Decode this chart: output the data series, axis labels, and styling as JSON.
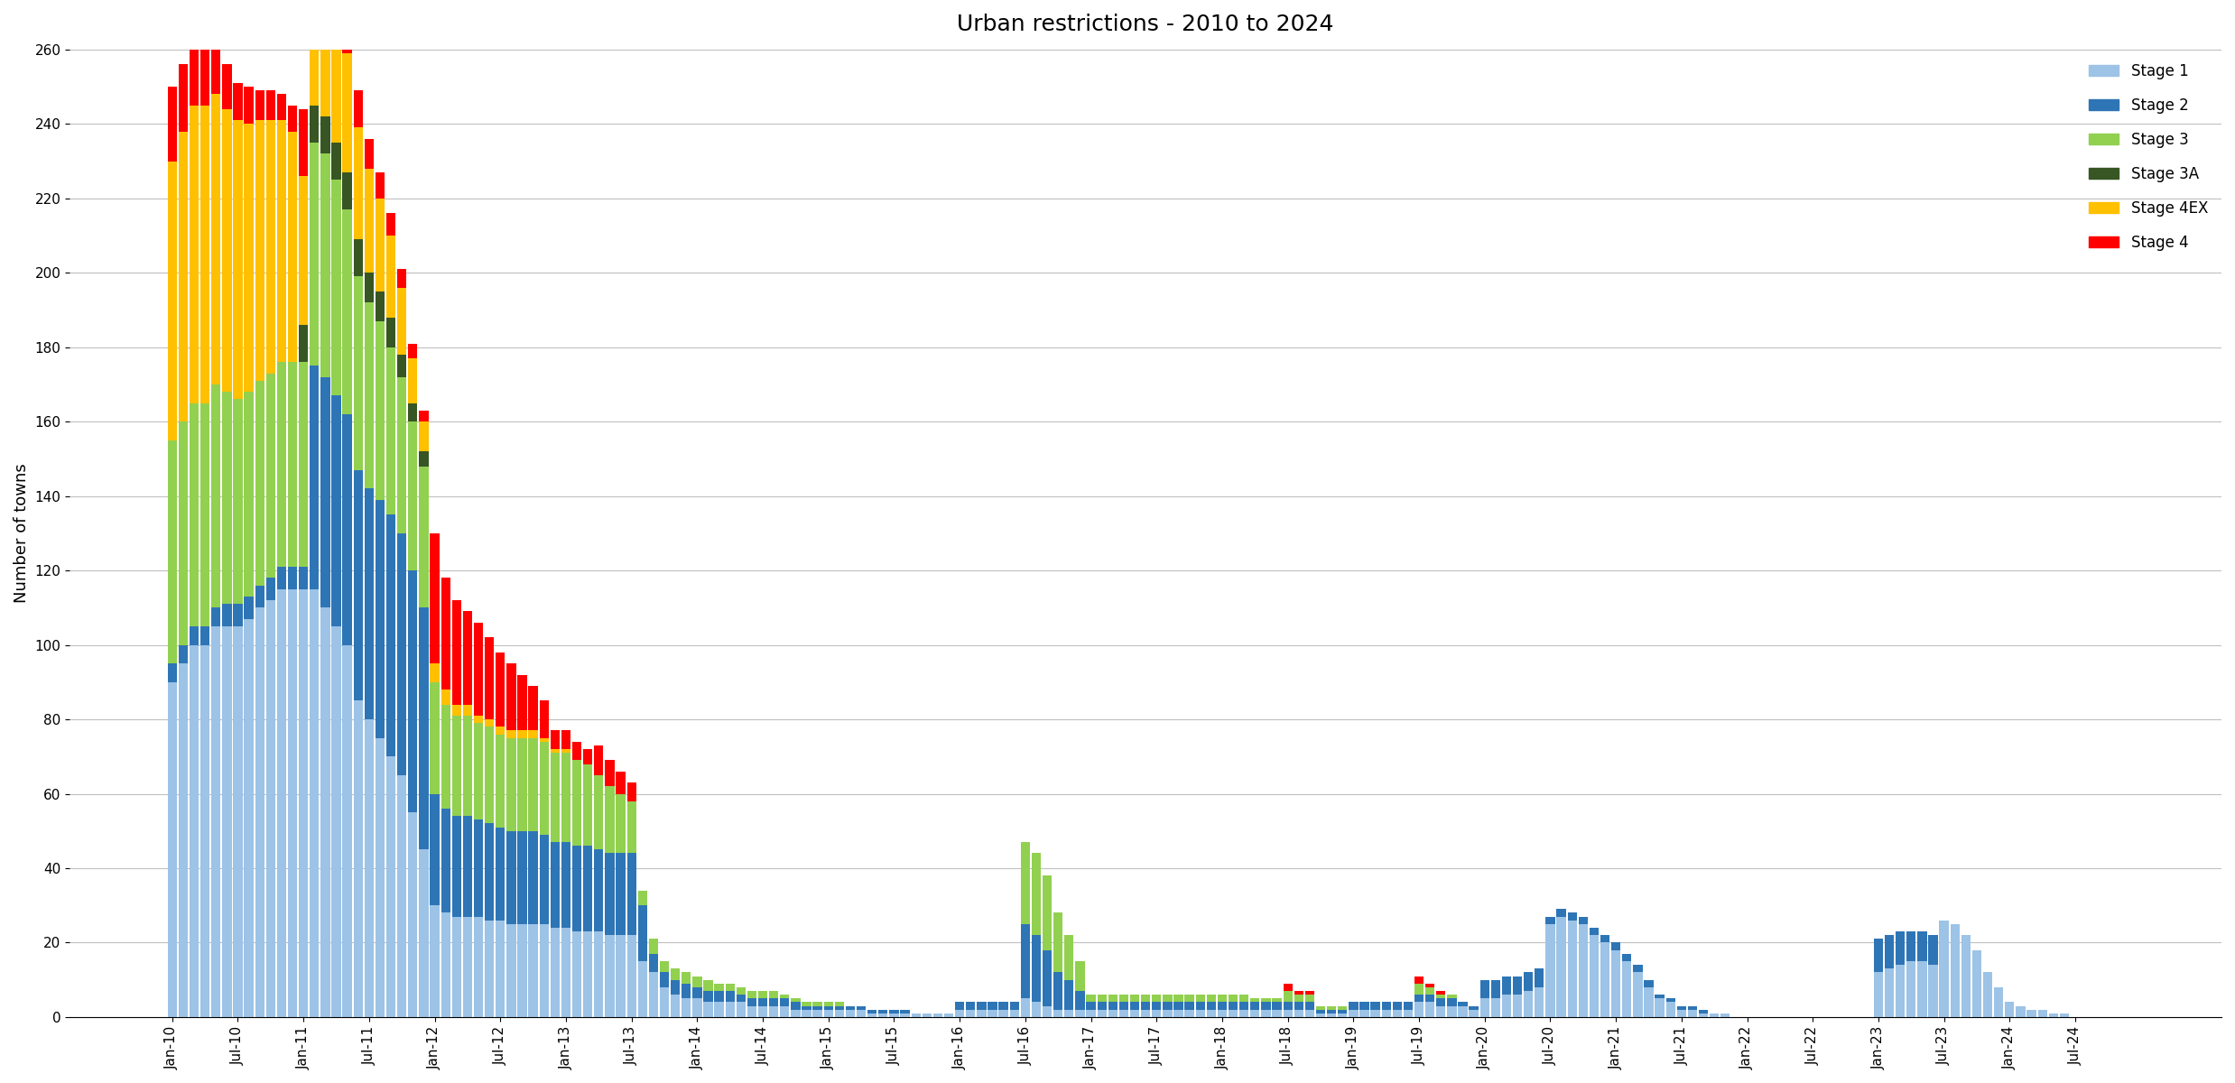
{
  "title": "Urban restrictions - 2010 to 2024",
  "ylabel": "Number of towns",
  "ylim": [
    0,
    260
  ],
  "yticks": [
    0,
    20,
    40,
    60,
    80,
    100,
    120,
    140,
    160,
    180,
    200,
    220,
    240,
    260
  ],
  "colors": {
    "Stage 1": "#9DC3E6",
    "Stage 2": "#2E75B6",
    "Stage 3": "#92D050",
    "Stage 3A": "#375623",
    "Stage 4EX": "#FFC000",
    "Stage 4": "#FF0000"
  },
  "legend_labels": [
    "Stage 1",
    "Stage 2",
    "Stage 3",
    "Stage 3A",
    "Stage 4EX",
    "Stage 4"
  ],
  "background_color": "#FFFFFF",
  "grid_color": "#C0C0C0",
  "title_fontsize": 18,
  "label_fontsize": 13,
  "tick_fontsize": 11,
  "vals_2010": [
    [
      90,
      5,
      60,
      0,
      75,
      20
    ],
    [
      95,
      5,
      60,
      0,
      78,
      18
    ],
    [
      100,
      5,
      60,
      0,
      80,
      15
    ],
    [
      100,
      5,
      60,
      0,
      80,
      15
    ],
    [
      105,
      5,
      60,
      0,
      78,
      15
    ],
    [
      105,
      6,
      57,
      0,
      76,
      12
    ],
    [
      105,
      6,
      55,
      0,
      75,
      10
    ],
    [
      107,
      6,
      55,
      0,
      72,
      10
    ],
    [
      110,
      6,
      55,
      0,
      70,
      8
    ],
    [
      112,
      6,
      55,
      0,
      68,
      8
    ],
    [
      115,
      6,
      55,
      0,
      65,
      7
    ],
    [
      115,
      6,
      55,
      0,
      62,
      7
    ]
  ],
  "vals_2011": [
    [
      115,
      6,
      55,
      10,
      40,
      18
    ],
    [
      115,
      60,
      60,
      10,
      38,
      16
    ],
    [
      110,
      62,
      60,
      10,
      36,
      16
    ],
    [
      105,
      62,
      58,
      10,
      34,
      14
    ],
    [
      100,
      62,
      55,
      10,
      32,
      12
    ],
    [
      85,
      62,
      52,
      10,
      30,
      10
    ],
    [
      80,
      62,
      50,
      8,
      28,
      8
    ],
    [
      75,
      64,
      48,
      8,
      25,
      7
    ],
    [
      70,
      65,
      45,
      8,
      22,
      6
    ],
    [
      65,
      65,
      42,
      6,
      18,
      5
    ],
    [
      55,
      65,
      40,
      5,
      12,
      4
    ],
    [
      45,
      65,
      38,
      4,
      8,
      3
    ]
  ],
  "vals_2012": [
    [
      30,
      30,
      30,
      0,
      5,
      35
    ],
    [
      28,
      28,
      28,
      0,
      4,
      30
    ],
    [
      27,
      27,
      27,
      0,
      3,
      28
    ],
    [
      27,
      27,
      27,
      0,
      3,
      25
    ],
    [
      27,
      26,
      26,
      0,
      2,
      25
    ],
    [
      26,
      26,
      26,
      0,
      2,
      22
    ],
    [
      26,
      25,
      25,
      0,
      2,
      20
    ],
    [
      25,
      25,
      25,
      0,
      2,
      18
    ],
    [
      25,
      25,
      25,
      0,
      2,
      15
    ],
    [
      25,
      25,
      25,
      0,
      2,
      12
    ],
    [
      25,
      24,
      25,
      0,
      1,
      10
    ],
    [
      24,
      23,
      24,
      0,
      1,
      5
    ]
  ],
  "vals_2013": [
    [
      24,
      23,
      24,
      0,
      1,
      5
    ],
    [
      23,
      23,
      23,
      0,
      0,
      5
    ],
    [
      23,
      23,
      22,
      0,
      0,
      4
    ],
    [
      23,
      22,
      20,
      0,
      0,
      8
    ],
    [
      22,
      22,
      18,
      0,
      0,
      7
    ],
    [
      22,
      22,
      16,
      0,
      0,
      6
    ],
    [
      22,
      22,
      14,
      0,
      0,
      5
    ],
    [
      15,
      15,
      4,
      0,
      0,
      0
    ],
    [
      12,
      5,
      4,
      0,
      0,
      0
    ],
    [
      8,
      4,
      3,
      0,
      0,
      0
    ],
    [
      6,
      4,
      3,
      0,
      0,
      0
    ],
    [
      5,
      4,
      3,
      0,
      0,
      0
    ]
  ],
  "vals_2014": [
    [
      5,
      3,
      3,
      0,
      0,
      0
    ],
    [
      4,
      3,
      3,
      0,
      0,
      0
    ],
    [
      4,
      3,
      2,
      0,
      0,
      0
    ],
    [
      4,
      3,
      2,
      0,
      0,
      0
    ],
    [
      4,
      2,
      2,
      0,
      0,
      0
    ],
    [
      3,
      2,
      2,
      0,
      0,
      0
    ],
    [
      3,
      2,
      2,
      0,
      0,
      0
    ],
    [
      3,
      2,
      2,
      0,
      0,
      0
    ],
    [
      3,
      2,
      1,
      0,
      0,
      0
    ],
    [
      2,
      2,
      1,
      0,
      0,
      0
    ],
    [
      2,
      1,
      1,
      0,
      0,
      0
    ],
    [
      2,
      1,
      1,
      0,
      0,
      0
    ]
  ],
  "vals_2015": [
    [
      2,
      1,
      1,
      0,
      0,
      0
    ],
    [
      2,
      1,
      1,
      0,
      0,
      0
    ],
    [
      2,
      1,
      0,
      0,
      0,
      0
    ],
    [
      2,
      1,
      0,
      0,
      0,
      0
    ],
    [
      1,
      1,
      0,
      0,
      0,
      0
    ],
    [
      1,
      1,
      0,
      0,
      0,
      0
    ],
    [
      1,
      1,
      0,
      0,
      0,
      0
    ],
    [
      1,
      1,
      0,
      0,
      0,
      0
    ],
    [
      1,
      0,
      0,
      0,
      0,
      0
    ],
    [
      1,
      0,
      0,
      0,
      0,
      0
    ],
    [
      1,
      0,
      0,
      0,
      0,
      0
    ],
    [
      1,
      0,
      0,
      0,
      0,
      0
    ]
  ],
  "vals_2016": [
    [
      2,
      2,
      0,
      0,
      0,
      0
    ],
    [
      2,
      2,
      0,
      0,
      0,
      0
    ],
    [
      2,
      2,
      0,
      0,
      0,
      0
    ],
    [
      2,
      2,
      0,
      0,
      0,
      0
    ],
    [
      2,
      2,
      0,
      0,
      0,
      0
    ],
    [
      2,
      2,
      0,
      0,
      0,
      0
    ],
    [
      5,
      20,
      22,
      0,
      0,
      0
    ],
    [
      4,
      18,
      22,
      0,
      0,
      0
    ],
    [
      3,
      15,
      20,
      0,
      0,
      0
    ],
    [
      2,
      10,
      16,
      0,
      0,
      0
    ],
    [
      2,
      8,
      12,
      0,
      0,
      0
    ],
    [
      2,
      5,
      8,
      0,
      0,
      0
    ]
  ],
  "vals_2017": [
    [
      2,
      2,
      2,
      0,
      0,
      0
    ],
    [
      2,
      2,
      2,
      0,
      0,
      0
    ],
    [
      2,
      2,
      2,
      0,
      0,
      0
    ],
    [
      2,
      2,
      2,
      0,
      0,
      0
    ],
    [
      2,
      2,
      2,
      0,
      0,
      0
    ],
    [
      2,
      2,
      2,
      0,
      0,
      0
    ],
    [
      2,
      2,
      2,
      0,
      0,
      0
    ],
    [
      2,
      2,
      2,
      0,
      0,
      0
    ],
    [
      2,
      2,
      2,
      0,
      0,
      0
    ],
    [
      2,
      2,
      2,
      0,
      0,
      0
    ],
    [
      2,
      2,
      2,
      0,
      0,
      0
    ],
    [
      2,
      2,
      2,
      0,
      0,
      0
    ]
  ],
  "vals_2018": [
    [
      2,
      2,
      2,
      0,
      0,
      0
    ],
    [
      2,
      2,
      2,
      0,
      0,
      0
    ],
    [
      2,
      2,
      2,
      0,
      0,
      0
    ],
    [
      2,
      2,
      1,
      0,
      0,
      0
    ],
    [
      2,
      2,
      1,
      0,
      0,
      0
    ],
    [
      2,
      2,
      1,
      0,
      0,
      0
    ],
    [
      2,
      2,
      3,
      0,
      0,
      2
    ],
    [
      2,
      2,
      2,
      0,
      0,
      1
    ],
    [
      2,
      2,
      2,
      0,
      0,
      1
    ],
    [
      1,
      1,
      1,
      0,
      0,
      0
    ],
    [
      1,
      1,
      1,
      0,
      0,
      0
    ],
    [
      1,
      1,
      1,
      0,
      0,
      0
    ]
  ],
  "vals_2019": [
    [
      2,
      2,
      0,
      0,
      0,
      0
    ],
    [
      2,
      2,
      0,
      0,
      0,
      0
    ],
    [
      2,
      2,
      0,
      0,
      0,
      0
    ],
    [
      2,
      2,
      0,
      0,
      0,
      0
    ],
    [
      2,
      2,
      0,
      0,
      0,
      0
    ],
    [
      2,
      2,
      0,
      0,
      0,
      0
    ],
    [
      4,
      2,
      3,
      0,
      0,
      2
    ],
    [
      4,
      2,
      2,
      0,
      0,
      1
    ],
    [
      3,
      2,
      1,
      0,
      0,
      1
    ],
    [
      3,
      2,
      1,
      0,
      0,
      0
    ],
    [
      3,
      1,
      0,
      0,
      0,
      0
    ],
    [
      2,
      1,
      0,
      0,
      0,
      0
    ]
  ],
  "vals_2020": [
    [
      5,
      5,
      0,
      0,
      0,
      0
    ],
    [
      5,
      5,
      0,
      0,
      0,
      0
    ],
    [
      6,
      5,
      0,
      0,
      0,
      0
    ],
    [
      6,
      5,
      0,
      0,
      0,
      0
    ],
    [
      7,
      5,
      0,
      0,
      0,
      0
    ],
    [
      8,
      5,
      0,
      0,
      0,
      0
    ],
    [
      25,
      2,
      0,
      0,
      0,
      0
    ],
    [
      27,
      2,
      0,
      0,
      0,
      0
    ],
    [
      26,
      2,
      0,
      0,
      0,
      0
    ],
    [
      25,
      2,
      0,
      0,
      0,
      0
    ],
    [
      22,
      2,
      0,
      0,
      0,
      0
    ],
    [
      20,
      2,
      0,
      0,
      0,
      0
    ]
  ],
  "vals_2021": [
    [
      18,
      2,
      0,
      0,
      0,
      0
    ],
    [
      15,
      2,
      0,
      0,
      0,
      0
    ],
    [
      12,
      2,
      0,
      0,
      0,
      0
    ],
    [
      8,
      2,
      0,
      0,
      0,
      0
    ],
    [
      5,
      1,
      0,
      0,
      0,
      0
    ],
    [
      4,
      1,
      0,
      0,
      0,
      0
    ],
    [
      2,
      1,
      0,
      0,
      0,
      0
    ],
    [
      2,
      1,
      0,
      0,
      0,
      0
    ],
    [
      1,
      1,
      0,
      0,
      0,
      0
    ],
    [
      1,
      0,
      0,
      0,
      0,
      0
    ],
    [
      1,
      0,
      0,
      0,
      0,
      0
    ],
    [
      0,
      0,
      0,
      0,
      0,
      0
    ]
  ],
  "vals_2022": [
    [
      0,
      0,
      0,
      0,
      0,
      0
    ],
    [
      0,
      0,
      0,
      0,
      0,
      0
    ],
    [
      0,
      0,
      0,
      0,
      0,
      0
    ],
    [
      0,
      0,
      0,
      0,
      0,
      0
    ],
    [
      0,
      0,
      0,
      0,
      0,
      0
    ],
    [
      0,
      0,
      0,
      0,
      0,
      0
    ],
    [
      0,
      0,
      0,
      0,
      0,
      0
    ],
    [
      0,
      0,
      0,
      0,
      0,
      0
    ],
    [
      0,
      0,
      0,
      0,
      0,
      0
    ],
    [
      0,
      0,
      0,
      0,
      0,
      0
    ],
    [
      0,
      0,
      0,
      0,
      0,
      0
    ],
    [
      0,
      0,
      0,
      0,
      0,
      0
    ]
  ],
  "vals_2023": [
    [
      12,
      9,
      0,
      0,
      0,
      0
    ],
    [
      13,
      9,
      0,
      0,
      0,
      0
    ],
    [
      14,
      9,
      0,
      0,
      0,
      0
    ],
    [
      15,
      8,
      0,
      0,
      0,
      0
    ],
    [
      15,
      8,
      0,
      0,
      0,
      0
    ],
    [
      14,
      8,
      0,
      0,
      0,
      0
    ],
    [
      26,
      0,
      0,
      0,
      0,
      0
    ],
    [
      25,
      0,
      0,
      0,
      0,
      0
    ],
    [
      22,
      0,
      0,
      0,
      0,
      0
    ],
    [
      18,
      0,
      0,
      0,
      0,
      0
    ],
    [
      12,
      0,
      0,
      0,
      0,
      0
    ],
    [
      8,
      0,
      0,
      0,
      0,
      0
    ]
  ],
  "vals_2024": [
    [
      4,
      0,
      0,
      0,
      0,
      0
    ],
    [
      3,
      0,
      0,
      0,
      0,
      0
    ],
    [
      2,
      0,
      0,
      0,
      0,
      0
    ],
    [
      2,
      0,
      0,
      0,
      0,
      0
    ],
    [
      1,
      0,
      0,
      0,
      0,
      0
    ],
    [
      1,
      0,
      0,
      0,
      0,
      0
    ],
    [
      0,
      0,
      0,
      0,
      0,
      0
    ],
    [
      0,
      0,
      0,
      0,
      0,
      0
    ],
    [
      0,
      0,
      0,
      0,
      0,
      0
    ],
    [
      0,
      0,
      0,
      0,
      0,
      0
    ],
    [
      0,
      0,
      0,
      0,
      0,
      0
    ]
  ]
}
